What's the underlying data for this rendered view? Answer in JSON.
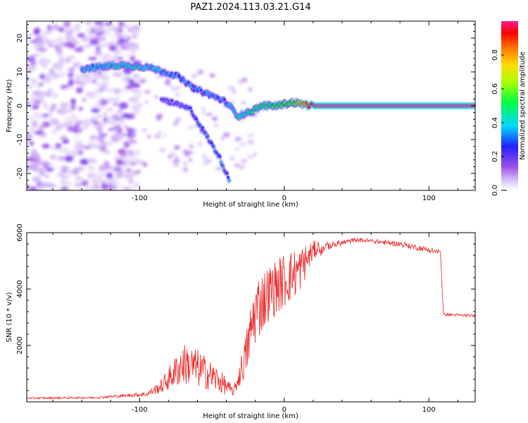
{
  "title": "PAZ1.2024.113.03.21.G14",
  "colors": {
    "snr_line": "#ee2222",
    "colormap": [
      "#ffffff",
      "#c9a6f5",
      "#8a2be2",
      "#0000ff",
      "#00d7ff",
      "#00ff00",
      "#ffff00",
      "#ff9900",
      "#ff0000",
      "#ff1a8c"
    ]
  },
  "chart_data": [
    {
      "type": "heatmap",
      "xlabel": "Height of straight line (km)",
      "ylabel": "Frequency (Hz)",
      "xlim": [
        -178,
        132
      ],
      "ylim": [
        -25,
        25
      ],
      "xticks": [
        -100,
        0,
        100
      ],
      "yticks": [
        -20,
        -10,
        0,
        10,
        20
      ],
      "colorbar": {
        "label": "Normalized spectral amplitude",
        "range": [
          0.0,
          1.0
        ],
        "ticks": [
          0.0,
          0.2,
          0.4,
          0.6,
          0.8
        ],
        "tick_labels": [
          "0.0",
          "0.2",
          "0.4",
          "0.6",
          "0.8"
        ]
      },
      "features": {
        "main_ridge": [
          {
            "x": -140,
            "f": 11,
            "a": 0.35
          },
          {
            "x": -115,
            "f": 12,
            "a": 0.4
          },
          {
            "x": -95,
            "f": 11.5,
            "a": 0.4
          },
          {
            "x": -75,
            "f": 9,
            "a": 0.3
          },
          {
            "x": -62,
            "f": 5,
            "a": 0.3
          },
          {
            "x": -50,
            "f": 3,
            "a": 0.3
          },
          {
            "x": -40,
            "f": 1,
            "a": 0.3
          },
          {
            "x": -32,
            "f": -3,
            "a": 0.4
          },
          {
            "x": -25,
            "f": -2,
            "a": 0.45
          },
          {
            "x": -15,
            "f": 0,
            "a": 0.45
          },
          {
            "x": -5,
            "f": 0,
            "a": 0.55
          },
          {
            "x": 5,
            "f": 1,
            "a": 0.55
          },
          {
            "x": 20,
            "f": 0,
            "a": 1.0
          },
          {
            "x": 132,
            "f": 0,
            "a": 1.0
          }
        ],
        "secondary_ridge": [
          {
            "x": -85,
            "f": 2,
            "a": 0.25
          },
          {
            "x": -65,
            "f": -1,
            "a": 0.25
          },
          {
            "x": -55,
            "f": -8,
            "a": 0.25
          },
          {
            "x": -45,
            "f": -15,
            "a": 0.3
          },
          {
            "x": -38,
            "f": -22,
            "a": 0.3
          }
        ],
        "noise_region_x": [
          -178,
          -100
        ]
      }
    },
    {
      "type": "line",
      "xlabel": "Height of straight line (km)",
      "ylabel": "SNR (10 * v/v)",
      "xlim": [
        -178,
        132
      ],
      "ylim": [
        0,
        6000
      ],
      "xticks": [
        -100,
        0,
        100
      ],
      "yticks": [
        2000,
        4000,
        6000
      ],
      "series": [
        {
          "envelope": [
            {
              "x": -178,
              "base": 100,
              "spread": 60
            },
            {
              "x": -130,
              "base": 110,
              "spread": 80
            },
            {
              "x": -95,
              "base": 200,
              "spread": 150
            },
            {
              "x": -85,
              "base": 300,
              "spread": 500
            },
            {
              "x": -70,
              "base": 600,
              "spread": 1500
            },
            {
              "x": -60,
              "base": 500,
              "spread": 1400
            },
            {
              "x": -45,
              "base": 300,
              "spread": 900
            },
            {
              "x": -35,
              "base": 200,
              "spread": 300
            },
            {
              "x": -27,
              "base": 800,
              "spread": 1500
            },
            {
              "x": -20,
              "base": 2000,
              "spread": 2500
            },
            {
              "x": -10,
              "base": 2900,
              "spread": 2000
            },
            {
              "x": 0,
              "base": 3300,
              "spread": 2000
            },
            {
              "x": 10,
              "base": 3800,
              "spread": 1700
            },
            {
              "x": 20,
              "base": 5000,
              "spread": 700
            },
            {
              "x": 28,
              "base": 5500,
              "spread": 300
            },
            {
              "x": 50,
              "base": 5750,
              "spread": 150
            },
            {
              "x": 80,
              "base": 5600,
              "spread": 200
            },
            {
              "x": 108,
              "base": 5300,
              "spread": 200
            },
            {
              "x": 110,
              "base": 3050,
              "spread": 100
            },
            {
              "x": 132,
              "base": 3000,
              "spread": 100
            }
          ]
        }
      ]
    }
  ]
}
